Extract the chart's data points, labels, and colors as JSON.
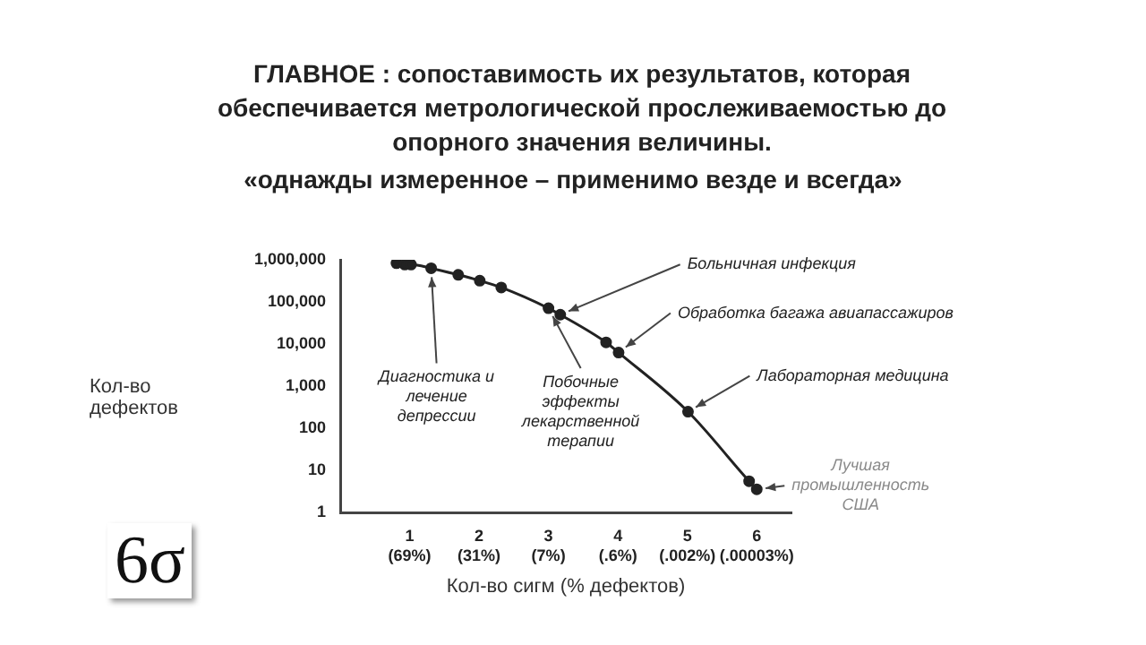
{
  "chart_data": {
    "type": "line",
    "title": "ГЛАВНОЕ : сопоставимость их результатов, которая обеспечивается метрологической прослеживаемостью до опорного значения величины.",
    "subtitle": "«однажды измеренное – применимо везде и всегда»",
    "xlabel": "Кол-во сигм (% дефектов)",
    "ylabel": "Кол-во дефектов",
    "x": [
      0.81,
      0.93,
      1.02,
      1.31,
      1.7,
      2.01,
      2.32,
      3.0,
      3.17,
      3.83,
      4.01,
      5.01,
      5.89,
      6.0
    ],
    "series": [
      {
        "color": "#222222",
        "values": [
          830000,
          770000,
          770000,
          630000,
          440000,
          320000,
          220000,
          71000,
          50000,
          11000,
          6300,
          250,
          5.6,
          3.6
        ]
      }
    ],
    "xlim": [
      0,
      6.5
    ],
    "xticks": [
      1,
      2,
      3,
      4,
      5,
      6
    ],
    "ylim": [
      1,
      1000000
    ],
    "yticks": [
      {
        "value": 1,
        "label": "1"
      },
      {
        "value": 10,
        "label": "10"
      },
      {
        "value": 100,
        "label": "100"
      },
      {
        "value": 1000,
        "label": "1,000"
      },
      {
        "value": 10000,
        "label": "10,000"
      },
      {
        "value": 100000,
        "label": "100,000"
      },
      {
        "value": 1000000,
        "label": "1,000,000"
      }
    ],
    "log": "y",
    "grid": false,
    "legend": false,
    "marker": "circle",
    "line_style": "solid",
    "annotations": [
      {
        "text": "Больничная инфекция",
        "x": 3.17,
        "y": 50000
      },
      {
        "text": "Обработка багажа авиапассажиров",
        "x": 4.01,
        "y": 6300
      },
      {
        "text": "Лабораторная медицина",
        "x": 5.01,
        "y": 250
      },
      {
        "text": "Лучшая промышленность США",
        "x": 6.0,
        "y": 3.6
      },
      {
        "text": "Диагностика и лечение депрессии",
        "x": 1.31,
        "y": 630000
      },
      {
        "text": "Побочные эффекты лекарственной терапии",
        "x": 3.0,
        "y": 71000
      },
      "(69%)",
      "(31%)",
      "(7%)",
      "(.6%)",
      "(.002%)",
      "(.00003%)",
      "6σ"
    ]
  }
}
